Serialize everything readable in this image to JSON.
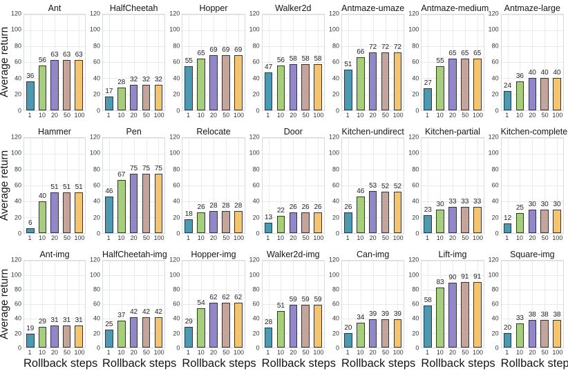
{
  "chart_data": {
    "type": "bar",
    "layout": {
      "rows": 3,
      "cols": 7
    },
    "ylabel": "Average return",
    "xlabel": "Rollback steps",
    "categories": [
      "1",
      "10",
      "20",
      "50",
      "100"
    ],
    "ylim": [
      0,
      120
    ],
    "yticks": [
      0,
      20,
      40,
      60,
      80,
      100,
      120
    ],
    "grid": true,
    "bar_colors": [
      "#4C9AB2",
      "#A6CE7B",
      "#9288C9",
      "#C5A49C",
      "#F4C46F"
    ],
    "bar_edge_color": "#333333",
    "panels": [
      {
        "title": "Ant",
        "values": [
          36,
          56,
          63,
          63,
          63
        ]
      },
      {
        "title": "HalfCheetah",
        "values": [
          17,
          28,
          32,
          32,
          32
        ]
      },
      {
        "title": "Hopper",
        "values": [
          55,
          65,
          69,
          69,
          69
        ]
      },
      {
        "title": "Walker2d",
        "values": [
          47,
          56,
          58,
          58,
          58
        ]
      },
      {
        "title": "Antmaze-umaze",
        "values": [
          51,
          66,
          72,
          72,
          72
        ]
      },
      {
        "title": "Antmaze-medium",
        "values": [
          27,
          55,
          65,
          65,
          65
        ]
      },
      {
        "title": "Antmaze-large",
        "values": [
          24,
          36,
          40,
          40,
          40
        ]
      },
      {
        "title": "Hammer",
        "values": [
          6,
          40,
          51,
          51,
          51
        ]
      },
      {
        "title": "Pen",
        "values": [
          46,
          67,
          75,
          75,
          75
        ]
      },
      {
        "title": "Relocate",
        "values": [
          18,
          26,
          28,
          28,
          28
        ]
      },
      {
        "title": "Door",
        "values": [
          13,
          22,
          26,
          26,
          26
        ]
      },
      {
        "title": "Kitchen-undirect",
        "values": [
          26,
          46,
          53,
          52,
          52
        ]
      },
      {
        "title": "Kitchen-partial",
        "values": [
          23,
          30,
          33,
          33,
          33
        ]
      },
      {
        "title": "Kitchen-complete",
        "values": [
          12,
          25,
          30,
          30,
          30
        ]
      },
      {
        "title": "Ant-img",
        "values": [
          19,
          29,
          31,
          31,
          31
        ]
      },
      {
        "title": "HalfCheetah-img",
        "values": [
          25,
          37,
          42,
          42,
          42
        ]
      },
      {
        "title": "Hopper-img",
        "values": [
          29,
          54,
          62,
          62,
          62
        ]
      },
      {
        "title": "Walker2d-img",
        "values": [
          28,
          51,
          59,
          59,
          59
        ]
      },
      {
        "title": "Can-img",
        "values": [
          20,
          34,
          39,
          39,
          39
        ]
      },
      {
        "title": "Lift-img",
        "values": [
          58,
          83,
          90,
          91,
          91
        ]
      },
      {
        "title": "Square-img",
        "values": [
          20,
          33,
          38,
          38,
          38
        ]
      }
    ]
  }
}
